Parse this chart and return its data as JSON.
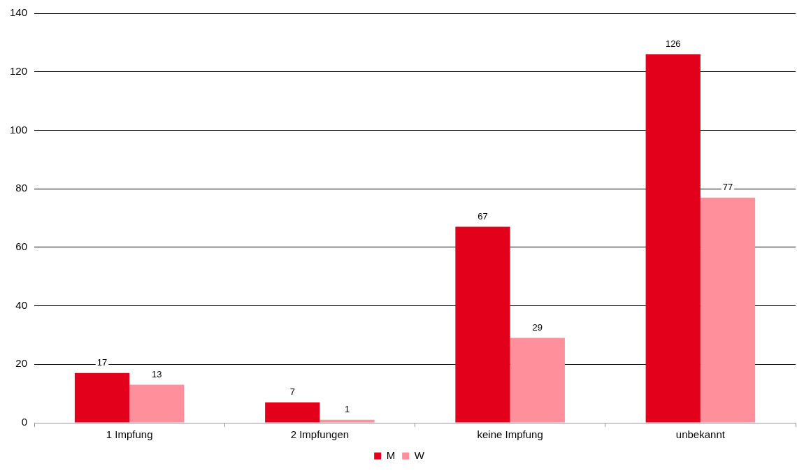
{
  "chart_data": {
    "type": "bar",
    "categories": [
      "1 Impfung",
      "2 Impfungen",
      "keine Impfung",
      "unbekannt"
    ],
    "series": [
      {
        "name": "M",
        "color": "#e2001a",
        "values": [
          17,
          7,
          67,
          126
        ]
      },
      {
        "name": "W",
        "color": "#ff8f9a",
        "values": [
          13,
          1,
          29,
          77
        ]
      }
    ],
    "ylim": [
      0,
      140
    ],
    "yticks": [
      0,
      20,
      40,
      60,
      80,
      100,
      120,
      140
    ],
    "grid": "y",
    "legend": "bottom",
    "data_labels": true
  }
}
